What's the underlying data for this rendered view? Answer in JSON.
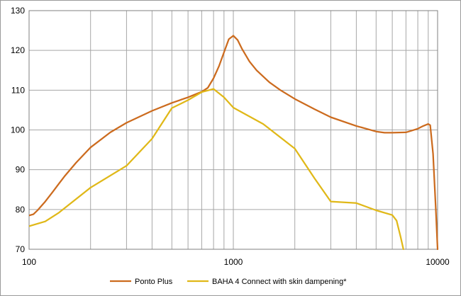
{
  "chart_data": {
    "type": "line",
    "x_scale": "log",
    "xlim": [
      100,
      10000
    ],
    "ylim": [
      70,
      130
    ],
    "grid": true,
    "legend_position": "bottom",
    "x_tick_labels": [
      "100",
      "1000",
      "10000"
    ],
    "y_tick_labels": [
      "70",
      "80",
      "90",
      "100",
      "110",
      "120",
      "130"
    ],
    "title": "",
    "xlabel": "",
    "ylabel": "",
    "series": [
      {
        "name": "Ponto Plus",
        "color": "#CC6B1E",
        "points": [
          [
            100,
            78.5
          ],
          [
            105,
            78.8
          ],
          [
            110,
            79.8
          ],
          [
            120,
            82
          ],
          [
            130,
            84.3
          ],
          [
            140,
            86.5
          ],
          [
            150,
            88.5
          ],
          [
            170,
            91.8
          ],
          [
            200,
            95.6
          ],
          [
            250,
            99.4
          ],
          [
            300,
            101.8
          ],
          [
            400,
            104.8
          ],
          [
            500,
            106.8
          ],
          [
            600,
            108.2
          ],
          [
            700,
            109.6
          ],
          [
            750,
            110.6
          ],
          [
            800,
            113
          ],
          [
            850,
            116
          ],
          [
            900,
            119.5
          ],
          [
            950,
            122.8
          ],
          [
            1000,
            123.7
          ],
          [
            1050,
            122.6
          ],
          [
            1100,
            120.5
          ],
          [
            1200,
            117.2
          ],
          [
            1300,
            115
          ],
          [
            1500,
            112
          ],
          [
            1700,
            110
          ],
          [
            2000,
            107.8
          ],
          [
            2500,
            105.2
          ],
          [
            3000,
            103.2
          ],
          [
            4000,
            101
          ],
          [
            5000,
            99.6
          ],
          [
            5500,
            99.3
          ],
          [
            6000,
            99.3
          ],
          [
            7000,
            99.4
          ],
          [
            8000,
            100.3
          ],
          [
            8500,
            101
          ],
          [
            9000,
            101.5
          ],
          [
            9200,
            101.2
          ],
          [
            9500,
            94
          ],
          [
            9800,
            80
          ],
          [
            10000,
            70
          ]
        ]
      },
      {
        "name": "BAHA 4 Connect with skin dampening*",
        "color": "#E0B818",
        "points": [
          [
            100,
            75.8
          ],
          [
            120,
            77
          ],
          [
            140,
            79.2
          ],
          [
            200,
            85.5
          ],
          [
            300,
            91
          ],
          [
            400,
            97.8
          ],
          [
            500,
            105.5
          ],
          [
            600,
            107.5
          ],
          [
            700,
            109.5
          ],
          [
            800,
            110.3
          ],
          [
            900,
            108.2
          ],
          [
            1000,
            105.6
          ],
          [
            1400,
            101.5
          ],
          [
            2000,
            95.3
          ],
          [
            2500,
            87.8
          ],
          [
            3000,
            82
          ],
          [
            4000,
            81.6
          ],
          [
            5000,
            79.8
          ],
          [
            6000,
            78.6
          ],
          [
            6300,
            77.2
          ],
          [
            6600,
            73
          ],
          [
            6800,
            70
          ]
        ]
      }
    ]
  }
}
